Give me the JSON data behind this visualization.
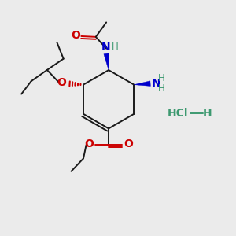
{
  "background_color": "#ebebeb",
  "bond_color": "#1a1a1a",
  "red_color": "#cc0000",
  "blue_color": "#0000cc",
  "teal_color": "#3d9970",
  "figsize": [
    3.0,
    3.0
  ],
  "dpi": 100,
  "xlim": [
    0,
    10
  ],
  "ylim": [
    0,
    10
  ]
}
